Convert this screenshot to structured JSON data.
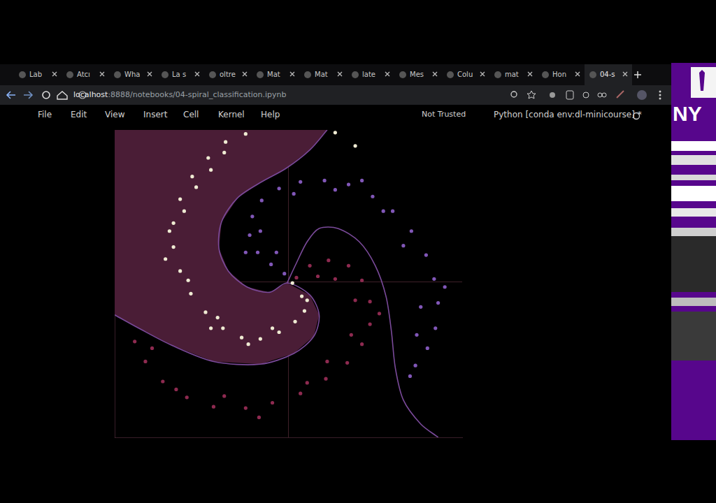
{
  "browser": {
    "tabs": [
      "Lab",
      "Atcı",
      "Wha",
      "La s",
      "oltre",
      "Mat",
      "Mat",
      "late",
      "Mes",
      "Colu",
      "mat",
      "Hon",
      "04-s"
    ],
    "active_tab": 12,
    "url_host": "localhost",
    "url_path": ":8888/notebooks/04-spiral_classification.ipynb"
  },
  "notebook": {
    "menu": [
      "File",
      "Edit",
      "View",
      "Insert",
      "Cell",
      "Kernel",
      "Help"
    ],
    "trust": "Not Trusted",
    "kernel": "Python [conda env:dl-minicourse] *"
  },
  "side_panel": {
    "text": "NY"
  },
  "chart_data": {
    "type": "scatter",
    "xlim": [
      -1.3,
      1.3
    ],
    "ylim": [
      -1.17,
      1.14
    ],
    "xticks": [
      0
    ],
    "yticks": [
      0
    ],
    "grid": true,
    "tick_labels": false,
    "region": {
      "color": "#4a1d36",
      "values": [
        [
          -1.3,
          1.14
        ],
        [
          0.29,
          1.14
        ],
        [
          0.16,
          0.99
        ],
        [
          -0.02,
          0.85
        ],
        [
          -0.2,
          0.75
        ],
        [
          -0.38,
          0.63
        ],
        [
          -0.5,
          0.45
        ],
        [
          -0.52,
          0.25
        ],
        [
          -0.45,
          0.08
        ],
        [
          -0.31,
          -0.04
        ],
        [
          -0.14,
          -0.08
        ],
        [
          -0.01,
          -0.01
        ],
        [
          0.16,
          -0.1
        ],
        [
          0.23,
          -0.25
        ],
        [
          0.19,
          -0.41
        ],
        [
          0.04,
          -0.54
        ],
        [
          -0.21,
          -0.62
        ],
        [
          -0.56,
          -0.6
        ],
        [
          -0.87,
          -0.48
        ],
        [
          -1.12,
          -0.35
        ],
        [
          -1.3,
          -0.25
        ]
      ]
    },
    "series": [
      {
        "color": "#efebd3",
        "marker": "circle",
        "values": [
          [
            0.03,
            -0.01
          ],
          [
            0.1,
            -0.11
          ],
          [
            0.12,
            -0.22
          ],
          [
            0.05,
            -0.3
          ],
          [
            -0.07,
            -0.38
          ],
          [
            -0.21,
            -0.43
          ],
          [
            -0.35,
            -0.42
          ],
          [
            -0.49,
            -0.35
          ],
          [
            -0.62,
            -0.23
          ],
          [
            -0.73,
            -0.09
          ],
          [
            -0.81,
            0.08
          ],
          [
            -0.86,
            0.26
          ],
          [
            -0.86,
            0.44
          ],
          [
            -0.81,
            0.62
          ],
          [
            -0.72,
            0.79
          ],
          [
            -0.6,
            0.93
          ],
          [
            -0.47,
            1.05
          ],
          [
            -0.32,
            1.11
          ],
          [
            0.35,
            1.12
          ],
          [
            0.5,
            1.02
          ],
          [
            -0.89,
            0.38
          ],
          [
            -0.78,
            0.53
          ],
          [
            -0.75,
            0.01
          ],
          [
            -0.58,
            -0.35
          ],
          [
            -0.3,
            -0.47
          ],
          [
            -0.12,
            -0.35
          ],
          [
            0.14,
            -0.14
          ],
          [
            -0.69,
            0.71
          ],
          [
            -0.92,
            0.17
          ],
          [
            -0.53,
            -0.27
          ],
          [
            -0.48,
            0.97
          ],
          [
            -0.58,
            0.84
          ]
        ]
      },
      {
        "color": "#8157b8",
        "marker": "circle",
        "values": [
          [
            -0.03,
            0.06
          ],
          [
            -0.13,
            0.13
          ],
          [
            -0.23,
            0.22
          ],
          [
            -0.29,
            0.35
          ],
          [
            -0.27,
            0.49
          ],
          [
            -0.2,
            0.61
          ],
          [
            -0.07,
            0.7
          ],
          [
            0.09,
            0.75
          ],
          [
            0.27,
            0.76
          ],
          [
            0.45,
            0.73
          ],
          [
            0.63,
            0.64
          ],
          [
            0.78,
            0.53
          ],
          [
            0.92,
            0.38
          ],
          [
            1.03,
            0.2
          ],
          [
            1.09,
            0.02
          ],
          [
            1.12,
            -0.16
          ],
          [
            1.1,
            -0.35
          ],
          [
            1.04,
            -0.5
          ],
          [
            0.95,
            -0.63
          ],
          [
            0.91,
            -0.71
          ],
          [
            -0.32,
            0.22
          ],
          [
            -0.21,
            0.38
          ],
          [
            0.04,
            0.66
          ],
          [
            0.35,
            0.69
          ],
          [
            0.71,
            0.53
          ],
          [
            0.86,
            0.27
          ],
          [
            1.17,
            -0.04
          ],
          [
            0.99,
            -0.19
          ],
          [
            0.96,
            -0.4
          ],
          [
            0.55,
            0.76
          ],
          [
            -0.09,
            0.22
          ]
        ]
      },
      {
        "color": "#8e2a50",
        "marker": "circle",
        "values": [
          [
            0.06,
            0.03
          ],
          [
            0.16,
            0.12
          ],
          [
            0.3,
            0.16
          ],
          [
            0.45,
            0.12
          ],
          [
            0.55,
            0.01
          ],
          [
            0.61,
            -0.15
          ],
          [
            0.61,
            -0.32
          ],
          [
            0.55,
            -0.47
          ],
          [
            0.44,
            -0.61
          ],
          [
            0.28,
            -0.73
          ],
          [
            0.09,
            -0.84
          ],
          [
            -0.12,
            -0.91
          ],
          [
            -0.32,
            -0.95
          ],
          [
            -0.56,
            -0.94
          ],
          [
            -0.76,
            -0.87
          ],
          [
            -0.94,
            -0.75
          ],
          [
            -1.07,
            -0.6
          ],
          [
            -1.15,
            -0.45
          ],
          [
            0.35,
            0.02
          ],
          [
            0.5,
            -0.14
          ],
          [
            0.68,
            -0.24
          ],
          [
            0.47,
            -0.4
          ],
          [
            0.29,
            -0.6
          ],
          [
            0.14,
            -0.76
          ],
          [
            -0.22,
            -1.02
          ],
          [
            -0.48,
            -0.86
          ],
          [
            -0.84,
            -0.81
          ],
          [
            -1.02,
            -0.5
          ],
          [
            0.22,
            0.04
          ]
        ]
      },
      {
        "type": "line",
        "color": "#7a4a9a",
        "line_style": "solid",
        "values": [
          [
            0.29,
            1.14
          ],
          [
            0.16,
            0.99
          ],
          [
            -0.02,
            0.85
          ],
          [
            -0.2,
            0.75
          ],
          [
            -0.38,
            0.63
          ],
          [
            -0.5,
            0.45
          ],
          [
            -0.52,
            0.25
          ],
          [
            -0.45,
            0.08
          ],
          [
            -0.31,
            -0.04
          ],
          [
            -0.14,
            -0.08
          ],
          [
            -0.01,
            -0.01
          ],
          [
            0.16,
            -0.1
          ],
          [
            0.23,
            -0.25
          ],
          [
            0.19,
            -0.41
          ],
          [
            0.04,
            -0.54
          ],
          [
            -0.21,
            -0.62
          ],
          [
            -0.56,
            -0.6
          ],
          [
            -0.87,
            -0.48
          ],
          [
            -1.12,
            -0.35
          ],
          [
            -1.3,
            -0.25
          ]
        ]
      },
      {
        "type": "line",
        "color": "#7a4a9a",
        "line_style": "solid",
        "values": [
          [
            -0.01,
            -0.01
          ],
          [
            0.06,
            0.14
          ],
          [
            0.14,
            0.3
          ],
          [
            0.23,
            0.4
          ],
          [
            0.37,
            0.4
          ],
          [
            0.53,
            0.3
          ],
          [
            0.65,
            0.12
          ],
          [
            0.73,
            -0.11
          ],
          [
            0.77,
            -0.37
          ],
          [
            0.8,
            -0.65
          ],
          [
            0.86,
            -0.89
          ],
          [
            0.99,
            -1.07
          ],
          [
            1.12,
            -1.17
          ]
        ]
      }
    ]
  }
}
